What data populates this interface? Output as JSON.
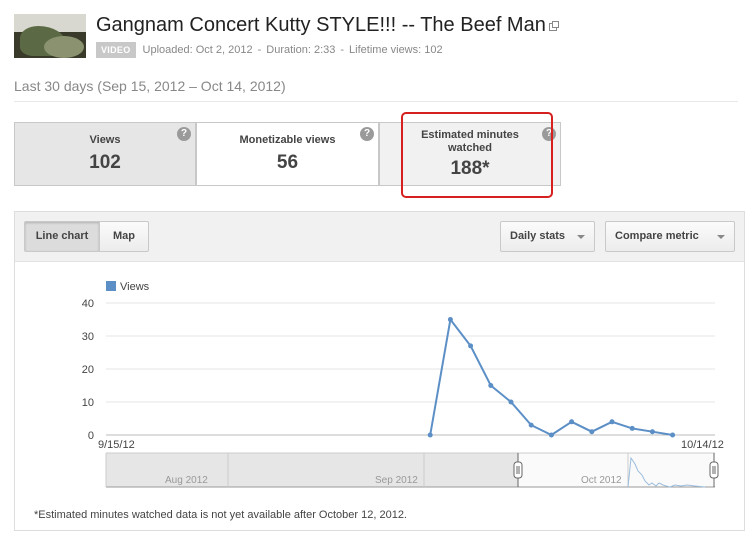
{
  "video": {
    "title": "Gangnam Concert Kutty STYLE!!! -- The Beef Man",
    "badge": "VIDEO",
    "uploaded": "Uploaded: Oct 2, 2012",
    "duration": "Duration: 2:33",
    "lifetime_views": "Lifetime views: 102",
    "separator": "-"
  },
  "period": "Last 30 days (Sep 15, 2012 – Oct 14, 2012)",
  "metrics": [
    {
      "label": "Views",
      "value": "102"
    },
    {
      "label": "Monetizable views",
      "value": "56"
    },
    {
      "label": "Estimated minutes watched",
      "value": "188*"
    }
  ],
  "help_glyph": "?",
  "toolbar": {
    "line_chart": "Line chart",
    "map": "Map",
    "daily_stats": "Daily stats",
    "compare_metric": "Compare metric"
  },
  "chart_data": {
    "type": "line",
    "legend": "Views",
    "series_color": "#5b8fc6",
    "y_ticks": [
      0,
      10,
      20,
      30,
      40
    ],
    "ylim": [
      0,
      40
    ],
    "x_start_label": "9/15/12",
    "x_end_label": "10/14/12",
    "x": [
      "9/15/12",
      "9/16/12",
      "9/17/12",
      "9/18/12",
      "9/19/12",
      "9/20/12",
      "9/21/12",
      "9/22/12",
      "9/23/12",
      "9/24/12",
      "9/25/12",
      "9/26/12",
      "9/27/12",
      "9/28/12",
      "9/29/12",
      "9/30/12",
      "10/1/12",
      "10/2/12",
      "10/3/12",
      "10/4/12",
      "10/5/12",
      "10/6/12",
      "10/7/12",
      "10/8/12",
      "10/9/12",
      "10/10/12",
      "10/11/12",
      "10/12/12",
      "10/13/12",
      "10/14/12"
    ],
    "values": [
      null,
      null,
      null,
      null,
      null,
      null,
      null,
      null,
      null,
      null,
      null,
      null,
      null,
      null,
      null,
      null,
      0,
      35,
      27,
      15,
      10,
      3,
      0,
      4,
      1,
      4,
      2,
      1,
      0,
      null
    ],
    "navigator_labels": [
      "Aug 2012",
      "Sep 2012",
      "Oct 2012"
    ],
    "grid": true
  },
  "footnote": "*Estimated minutes watched data is not yet available after October 12, 2012."
}
